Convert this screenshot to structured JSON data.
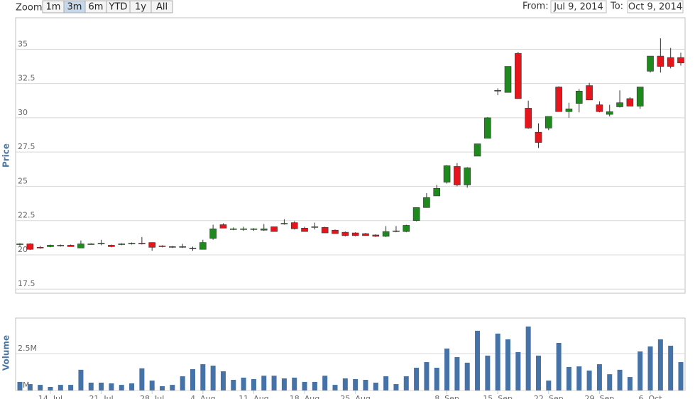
{
  "ui": {
    "zoom_label": "Zoom",
    "buttons": [
      "1m",
      "3m",
      "6m",
      "YTD",
      "1y",
      "All"
    ],
    "selected": 1,
    "from_label": "From:",
    "from": "Jul 9, 2014",
    "to_label": "To:",
    "to": "Oct 9, 2014"
  },
  "chart_data": [
    {
      "type": "candlestick",
      "y_label": "Price",
      "x": [
        "2014-07-09",
        "2014-07-10",
        "2014-07-11",
        "2014-07-14",
        "2014-07-15",
        "2014-07-16",
        "2014-07-17",
        "2014-07-18",
        "2014-07-21",
        "2014-07-22",
        "2014-07-23",
        "2014-07-24",
        "2014-07-25",
        "2014-07-28",
        "2014-07-29",
        "2014-07-30",
        "2014-07-31",
        "2014-08-01",
        "2014-08-04",
        "2014-08-05",
        "2014-08-06",
        "2014-08-07",
        "2014-08-08",
        "2014-08-11",
        "2014-08-12",
        "2014-08-13",
        "2014-08-14",
        "2014-08-15",
        "2014-08-18",
        "2014-08-19",
        "2014-08-20",
        "2014-08-21",
        "2014-08-22",
        "2014-08-25",
        "2014-08-26",
        "2014-08-27",
        "2014-08-28",
        "2014-08-29",
        "2014-09-02",
        "2014-09-03",
        "2014-09-04",
        "2014-09-05",
        "2014-09-08",
        "2014-09-09",
        "2014-09-10",
        "2014-09-11",
        "2014-09-12",
        "2014-09-15",
        "2014-09-16",
        "2014-09-17",
        "2014-09-18",
        "2014-09-19",
        "2014-09-22",
        "2014-09-23",
        "2014-09-24",
        "2014-09-25",
        "2014-09-26",
        "2014-09-29",
        "2014-09-30",
        "2014-10-01",
        "2014-10-02",
        "2014-10-03",
        "2014-10-06",
        "2014-10-07",
        "2014-10-08",
        "2014-10-09"
      ],
      "values": [
        [
          20.75,
          20.85,
          20.65,
          20.8
        ],
        [
          20.8,
          20.85,
          20.35,
          20.4
        ],
        [
          20.55,
          20.65,
          20.45,
          20.5
        ],
        [
          20.6,
          20.75,
          20.55,
          20.7
        ],
        [
          20.65,
          20.75,
          20.6,
          20.7
        ],
        [
          20.7,
          20.75,
          20.6,
          20.6
        ],
        [
          20.5,
          21.05,
          20.5,
          20.8
        ],
        [
          20.8,
          20.85,
          20.75,
          20.8
        ],
        [
          20.8,
          21.1,
          20.7,
          20.85
        ],
        [
          20.7,
          20.75,
          20.55,
          20.6
        ],
        [
          20.75,
          20.85,
          20.7,
          20.8
        ],
        [
          20.8,
          20.9,
          20.75,
          20.85
        ],
        [
          20.85,
          21.3,
          20.75,
          20.8
        ],
        [
          20.9,
          20.9,
          20.3,
          20.55
        ],
        [
          20.65,
          20.7,
          20.55,
          20.6
        ],
        [
          20.6,
          20.65,
          20.5,
          20.55
        ],
        [
          20.55,
          20.8,
          20.5,
          20.6
        ],
        [
          20.5,
          20.6,
          20.3,
          20.45
        ],
        [
          20.4,
          21.1,
          20.4,
          20.9
        ],
        [
          21.2,
          22.2,
          21.1,
          21.9
        ],
        [
          22.2,
          22.3,
          21.95,
          21.95
        ],
        [
          21.9,
          22.0,
          21.8,
          21.9
        ],
        [
          21.9,
          22.05,
          21.75,
          21.9
        ],
        [
          21.85,
          21.95,
          21.75,
          21.9
        ],
        [
          21.8,
          22.25,
          21.75,
          21.9
        ],
        [
          22.05,
          22.05,
          21.7,
          21.7
        ],
        [
          22.25,
          22.6,
          22.2,
          22.3
        ],
        [
          22.35,
          22.45,
          21.85,
          21.9
        ],
        [
          21.95,
          22.05,
          21.7,
          21.7
        ],
        [
          22.0,
          22.35,
          21.85,
          22.05
        ],
        [
          22.0,
          22.05,
          21.6,
          21.6
        ],
        [
          21.8,
          21.85,
          21.55,
          21.55
        ],
        [
          21.65,
          21.7,
          21.35,
          21.4
        ],
        [
          21.6,
          21.65,
          21.35,
          21.4
        ],
        [
          21.55,
          21.6,
          21.4,
          21.4
        ],
        [
          21.45,
          21.5,
          21.3,
          21.35
        ],
        [
          21.35,
          22.1,
          21.3,
          21.7
        ],
        [
          21.7,
          22.1,
          21.65,
          21.75
        ],
        [
          21.7,
          22.2,
          21.65,
          22.15
        ],
        [
          22.5,
          23.45,
          22.45,
          23.45
        ],
        [
          23.45,
          24.5,
          23.45,
          24.18
        ],
        [
          24.3,
          25.1,
          24.3,
          24.85
        ],
        [
          25.3,
          26.55,
          25.2,
          26.5
        ],
        [
          26.45,
          26.7,
          25.0,
          25.1
        ],
        [
          25.1,
          26.4,
          24.9,
          26.35
        ],
        [
          27.2,
          28.1,
          27.2,
          28.1
        ],
        [
          28.5,
          30.05,
          28.5,
          30.0
        ],
        [
          32.0,
          32.15,
          31.65,
          32.0
        ],
        [
          31.85,
          33.75,
          31.85,
          33.75
        ],
        [
          34.7,
          34.8,
          31.4,
          31.4
        ],
        [
          30.7,
          31.25,
          29.2,
          29.25
        ],
        [
          28.95,
          29.6,
          27.8,
          28.2
        ],
        [
          29.25,
          30.1,
          29.1,
          30.1
        ],
        [
          32.25,
          32.3,
          30.45,
          30.45
        ],
        [
          30.45,
          31.1,
          30.0,
          30.65
        ],
        [
          31.05,
          32.1,
          30.4,
          31.95
        ],
        [
          32.35,
          32.55,
          31.3,
          31.3
        ],
        [
          30.95,
          31.2,
          30.4,
          30.45
        ],
        [
          30.25,
          30.95,
          30.1,
          30.45
        ],
        [
          30.8,
          32.0,
          30.75,
          31.1
        ],
        [
          31.4,
          31.5,
          30.85,
          30.85
        ],
        [
          30.85,
          32.25,
          30.65,
          32.25
        ],
        [
          33.4,
          34.5,
          33.3,
          34.5
        ],
        [
          34.5,
          35.8,
          33.3,
          33.75
        ],
        [
          34.4,
          35.1,
          33.6,
          33.75
        ],
        [
          34.4,
          34.75,
          33.8,
          34.0
        ]
      ],
      "up_color": "#1e8a1e",
      "down_color": "#e8141c",
      "ylim": [
        17.2,
        37.3
      ],
      "yticks": [
        17.5,
        20,
        22.5,
        25,
        27.5,
        30,
        32.5,
        35
      ],
      "grid": true
    },
    {
      "type": "bar",
      "y_label": "Volume",
      "color": "#4572a7",
      "values": [
        580000,
        430000,
        380000,
        240000,
        380000,
        380000,
        1400000,
        530000,
        530000,
        480000,
        380000,
        480000,
        1500000,
        670000,
        290000,
        380000,
        960000,
        1440000,
        1780000,
        1680000,
        1300000,
        720000,
        870000,
        770000,
        1000000,
        1000000,
        820000,
        870000,
        580000,
        580000,
        1000000,
        380000,
        820000,
        770000,
        720000,
        530000,
        960000,
        430000,
        960000,
        1540000,
        1920000,
        1540000,
        2840000,
        2260000,
        1880000,
        4040000,
        2360000,
        3850000,
        3460000,
        2600000,
        4330000,
        2360000,
        670000,
        3220000,
        1590000,
        1630000,
        1350000,
        1780000,
        1100000,
        1400000,
        910000,
        2640000,
        2980000,
        3460000,
        3030000,
        1920000
      ],
      "ylim": [
        0,
        4900000
      ],
      "yticks": [
        {
          "value": 0,
          "label": "0M"
        },
        {
          "value": 2500000,
          "label": "2.5M"
        }
      ],
      "grid": true,
      "xticks": [
        {
          "value": "2014-07-14",
          "label": "14. Jul"
        },
        {
          "value": "2014-07-21",
          "label": "21. Jul"
        },
        {
          "value": "2014-07-28",
          "label": "28. Jul"
        },
        {
          "value": "2014-08-04",
          "label": "4. Aug"
        },
        {
          "value": "2014-08-11",
          "label": "11. Aug"
        },
        {
          "value": "2014-08-18",
          "label": "18. Aug"
        },
        {
          "value": "2014-08-25",
          "label": "25. Aug"
        },
        {
          "value": "2014-09-08",
          "label": "8. Sep"
        },
        {
          "value": "2014-09-15",
          "label": "15. Sep"
        },
        {
          "value": "2014-09-22",
          "label": "22. Sep"
        },
        {
          "value": "2014-09-29",
          "label": "29. Sep"
        },
        {
          "value": "2014-10-06",
          "label": "6. Oct"
        }
      ]
    }
  ]
}
